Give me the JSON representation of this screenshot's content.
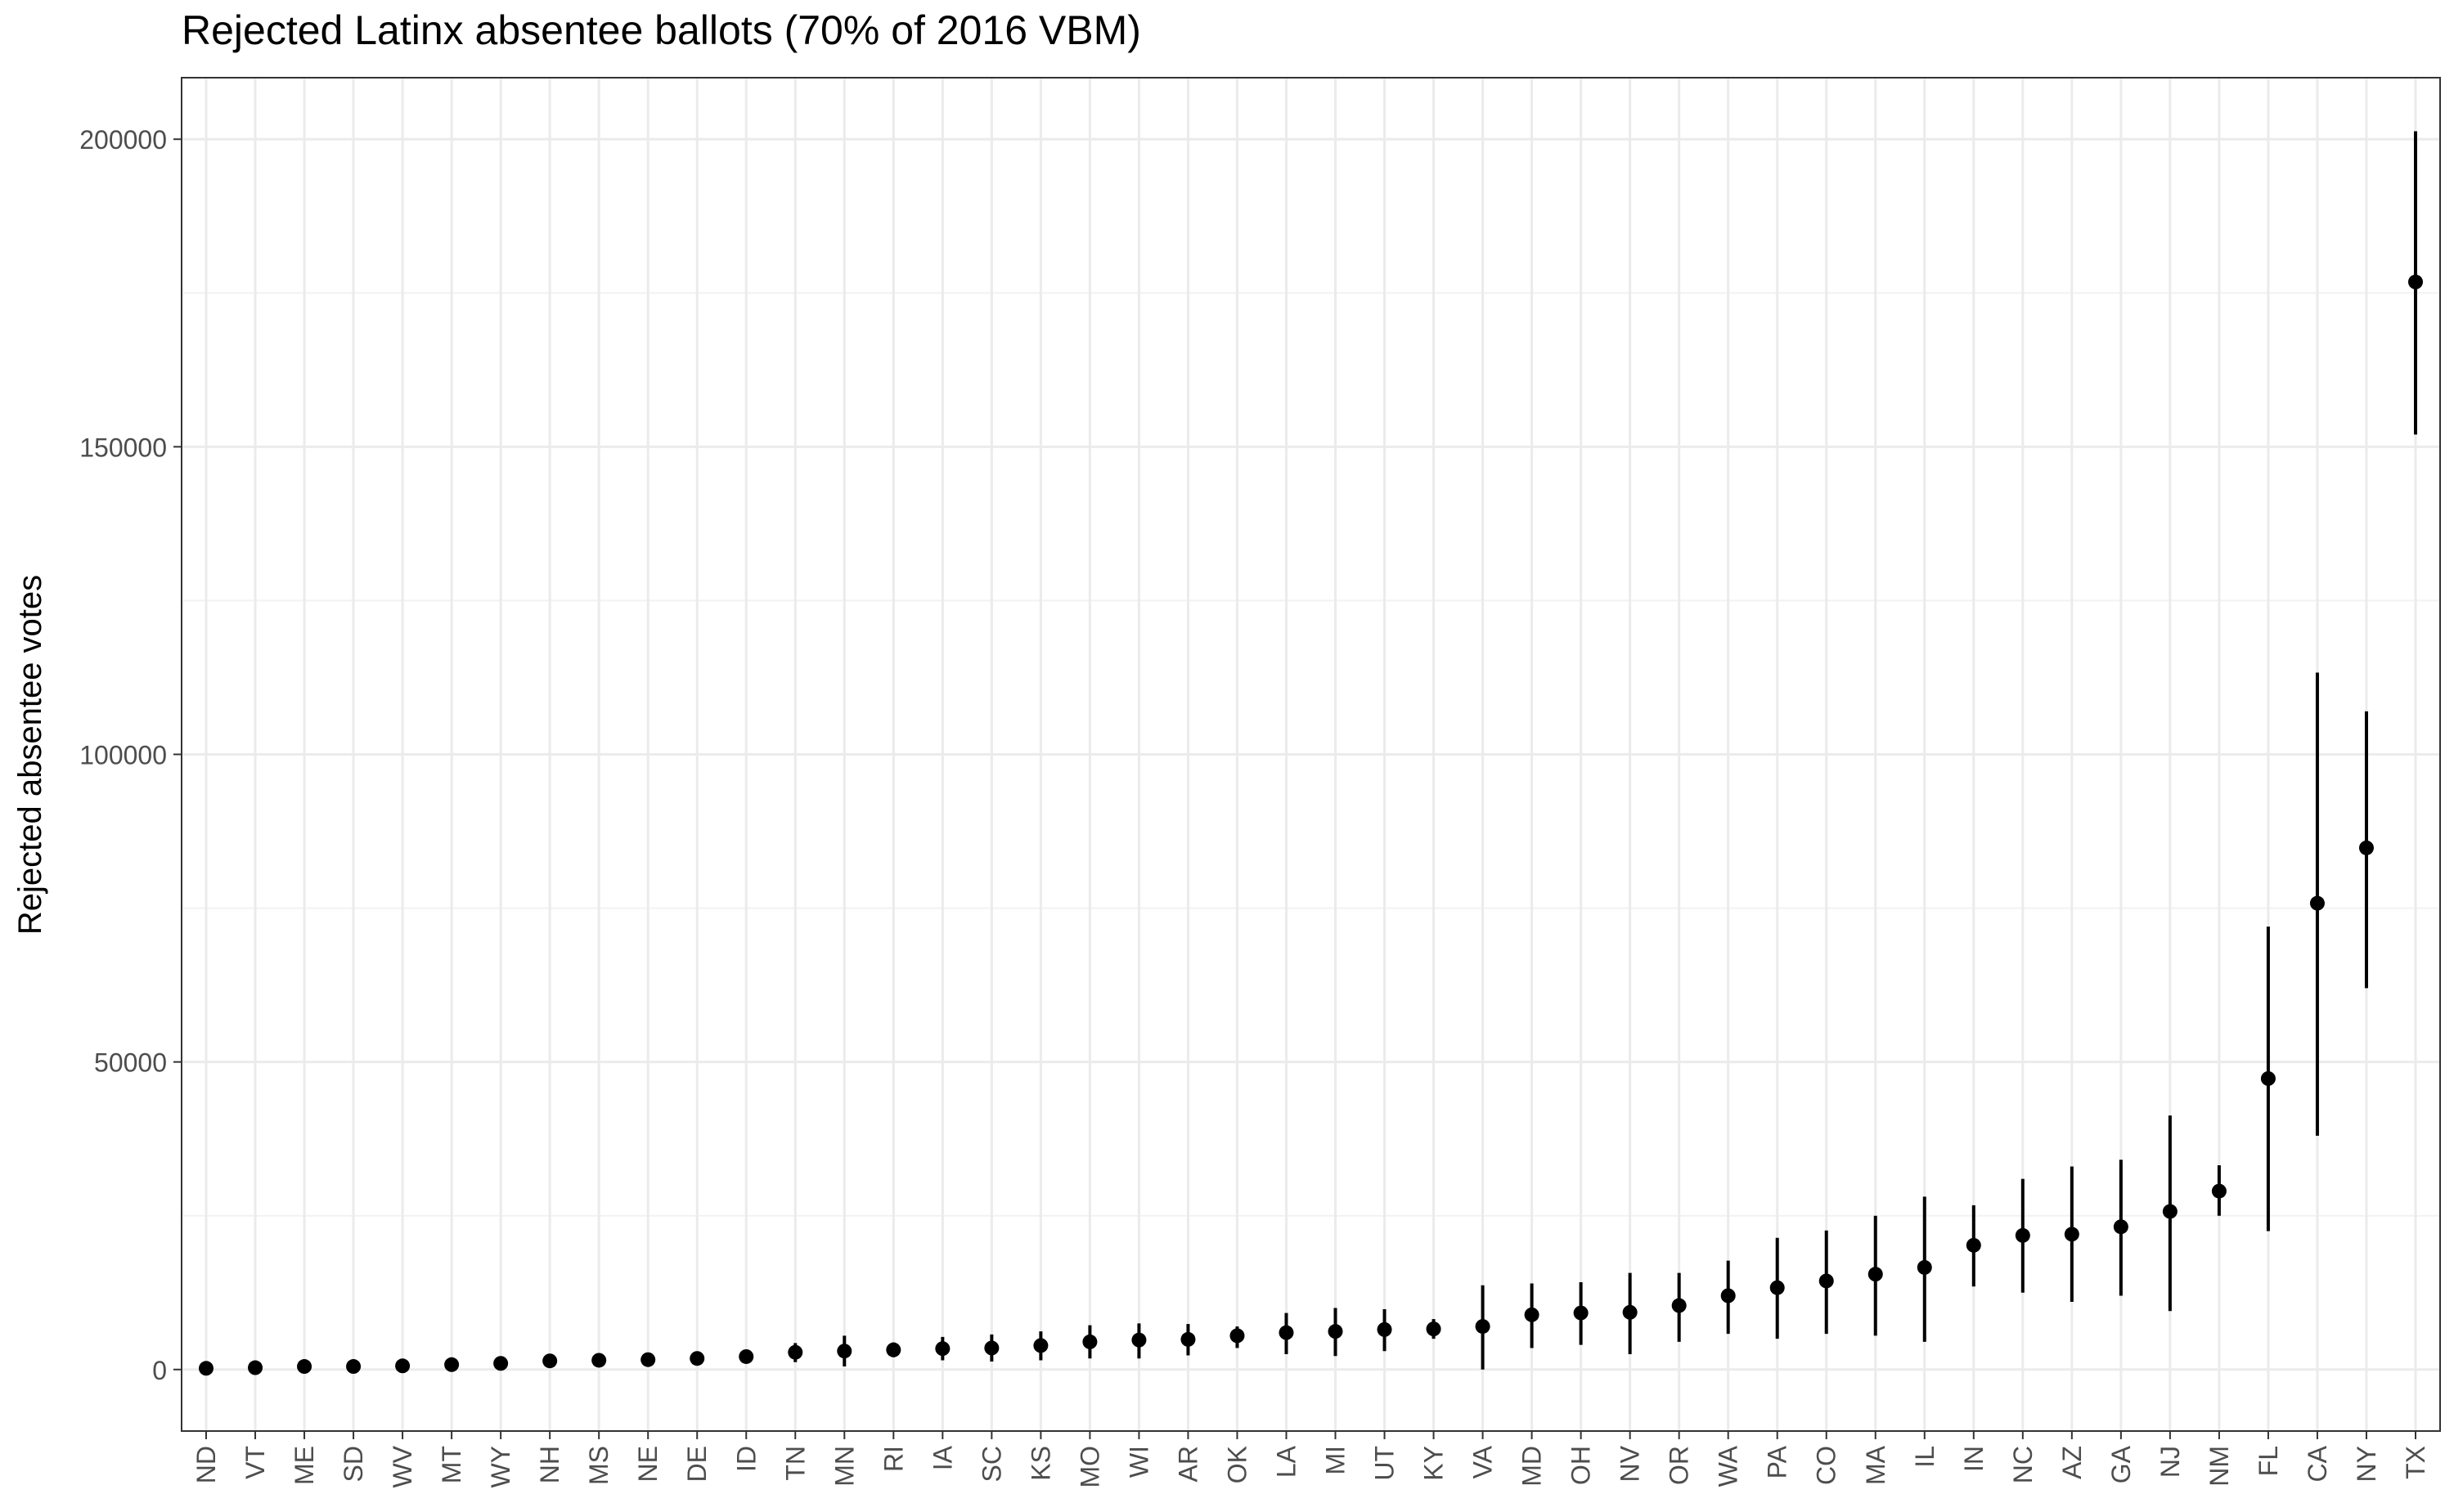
{
  "chart_data": {
    "type": "scatter",
    "subtype": "pointrange",
    "title": "Rejected Latinx absentee ballots (70% of 2016 VBM)",
    "xlabel": "",
    "ylabel": "Rejected absentee votes",
    "ylim": [
      -10000,
      210000
    ],
    "yticks": [
      0,
      50000,
      100000,
      150000,
      200000
    ],
    "grid": true,
    "legend": "none",
    "colors": {
      "point": "#000000",
      "grid": "#ebebeb",
      "panel_border": "#333333"
    },
    "categories": [
      "ND",
      "VT",
      "ME",
      "SD",
      "WV",
      "MT",
      "WY",
      "NH",
      "MS",
      "NE",
      "DE",
      "ID",
      "TN",
      "MN",
      "RI",
      "IA",
      "SC",
      "KS",
      "MO",
      "WI",
      "AR",
      "OK",
      "LA",
      "MI",
      "UT",
      "KY",
      "VA",
      "MD",
      "OH",
      "NV",
      "OR",
      "WA",
      "PA",
      "CO",
      "MA",
      "IL",
      "IN",
      "NC",
      "AZ",
      "GA",
      "NJ",
      "NM",
      "FL",
      "CA",
      "NY",
      "TX"
    ],
    "values": [
      200,
      300,
      500,
      500,
      600,
      800,
      1000,
      1400,
      1500,
      1600,
      1800,
      2100,
      2800,
      3000,
      3200,
      3400,
      3500,
      3900,
      4500,
      4800,
      4900,
      5500,
      6000,
      6200,
      6500,
      6600,
      7000,
      8900,
      9200,
      9300,
      10400,
      12000,
      13300,
      14400,
      15500,
      16600,
      20200,
      21800,
      22000,
      23200,
      25700,
      29000,
      47300,
      75800,
      84800,
      176800
    ],
    "lower": [
      0,
      0,
      200,
      200,
      300,
      400,
      600,
      900,
      1000,
      700,
      1300,
      1500,
      1200,
      500,
      2000,
      1500,
      1300,
      1500,
      1800,
      1800,
      2300,
      3500,
      2500,
      2200,
      3000,
      5000,
      0,
      3500,
      4000,
      2500,
      4500,
      5800,
      5000,
      5800,
      5500,
      4500,
      13500,
      12500,
      11000,
      12000,
      9500,
      25000,
      22500,
      38000,
      62000,
      152000
    ],
    "upper": [
      400,
      600,
      800,
      800,
      900,
      1200,
      1400,
      1900,
      2000,
      2500,
      2300,
      2700,
      4300,
      5500,
      4400,
      5300,
      5700,
      6200,
      7200,
      7500,
      7400,
      7000,
      9200,
      10000,
      9800,
      8200,
      13700,
      14000,
      14200,
      15700,
      15700,
      17700,
      21400,
      22600,
      25000,
      28100,
      26700,
      31000,
      33000,
      34100,
      41300,
      33200,
      72000,
      113300,
      107000,
      201300
    ]
  }
}
